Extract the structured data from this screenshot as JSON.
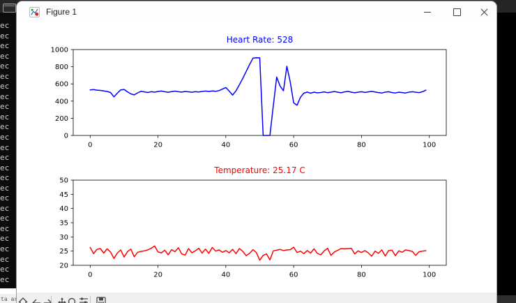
{
  "desktop": {
    "top_bar_color": "#262626",
    "console": {
      "line_text": "ec",
      "line_count": 26,
      "bottom_fragment": "ta ar"
    }
  },
  "window": {
    "title": "Figure 1",
    "titlebar_color": "#fdfdfd",
    "controls": [
      "minimize",
      "maximize",
      "close"
    ]
  },
  "toolbar": {
    "background": "#f0f0f0",
    "icons": [
      "home",
      "back",
      "forward",
      "pan",
      "zoom",
      "configure-subplots",
      "save"
    ]
  },
  "chart_data": [
    {
      "type": "line",
      "title": "Heart Rate: 528",
      "title_color": "#0000ff",
      "line_color": "#0000ff",
      "xlabel": "",
      "ylabel": "",
      "xlim": [
        -5,
        105
      ],
      "ylim": [
        0,
        1000
      ],
      "xticks": [
        0,
        20,
        40,
        60,
        80,
        100
      ],
      "yticks": [
        0,
        200,
        400,
        600,
        800,
        1000
      ],
      "grid": false,
      "legend": null,
      "x_start": 0,
      "x_step": 1,
      "values": [
        530,
        534,
        528,
        524,
        519,
        512,
        500,
        450,
        492,
        530,
        536,
        508,
        484,
        472,
        496,
        514,
        507,
        500,
        510,
        504,
        512,
        517,
        509,
        503,
        510,
        516,
        509,
        505,
        512,
        508,
        503,
        510,
        506,
        512,
        517,
        512,
        519,
        514,
        522,
        540,
        558,
        516,
        470,
        520,
        590,
        665,
        745,
        825,
        900,
        905,
        903,
        0,
        0,
        0,
        350,
        680,
        575,
        520,
        806,
        620,
        380,
        352,
        445,
        492,
        505,
        492,
        504,
        496,
        500,
        507,
        498,
        504,
        511,
        504,
        497,
        507,
        513,
        504,
        497,
        504,
        509,
        501,
        507,
        513,
        506,
        499,
        494,
        504,
        509,
        499,
        494,
        504,
        499,
        494,
        504,
        509,
        503,
        499,
        509,
        528
      ]
    },
    {
      "type": "line",
      "title": "Temperature: 25.17 C",
      "title_color": "#ff0000",
      "line_color": "#ff0000",
      "xlabel": "",
      "ylabel": "",
      "xlim": [
        -5,
        105
      ],
      "ylim": [
        20,
        50
      ],
      "xticks": [
        0,
        20,
        40,
        60,
        80,
        100
      ],
      "yticks": [
        20,
        25,
        30,
        35,
        40,
        45,
        50
      ],
      "grid": false,
      "legend": null,
      "x_start": 0,
      "x_step": 1,
      "values": [
        26.3,
        24.1,
        25.6,
        25.9,
        24.3,
        25.8,
        24.7,
        22.4,
        24.3,
        25.4,
        22.9,
        24.8,
        25.7,
        23.0,
        24.6,
        24.9,
        25.1,
        25.4,
        26.0,
        26.8,
        24.7,
        24.4,
        25.3,
        23.7,
        25.5,
        24.8,
        26.2,
        24.0,
        23.6,
        25.9,
        24.4,
        25.1,
        26.0,
        24.3,
        25.7,
        24.2,
        26.3,
        25.0,
        25.4,
        24.6,
        25.2,
        24.4,
        25.6,
        24.1,
        25.9,
        24.9,
        23.4,
        24.2,
        25.5,
        24.5,
        21.8,
        23.5,
        24.0,
        21.9,
        25.1,
        25.3,
        25.6,
        25.2,
        25.4,
        25.5,
        26.4,
        24.5,
        25.0,
        24.1,
        25.2,
        24.3,
        25.8,
        24.2,
        23.7,
        25.1,
        26.0,
        23.5,
        24.7,
        25.3,
        25.9,
        25.8,
        25.9,
        26.0,
        24.0,
        25.1,
        24.5,
        25.2,
        24.4,
        23.2,
        25.0,
        24.2,
        25.4,
        23.3,
        25.2,
        25.3,
        23.4,
        25.1,
        24.6,
        25.4,
        25.2,
        24.9,
        23.5,
        24.8,
        25.0,
        25.17
      ]
    }
  ]
}
